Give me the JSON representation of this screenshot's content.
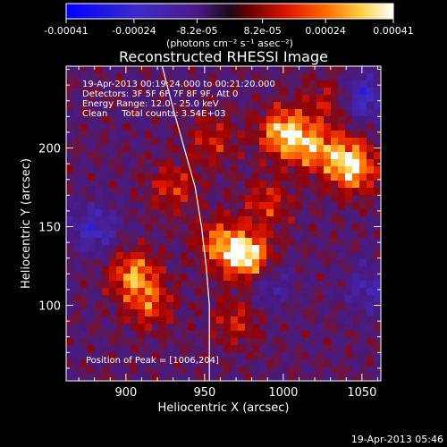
{
  "colorbar": {
    "tick_labels": [
      "-0.00041",
      "-0.00024",
      "-8.2e-05",
      "8.2e-05",
      "0.00024",
      "0.00041"
    ],
    "tick_values": [
      -0.00041,
      -0.00024,
      -8.2e-05,
      8.2e-05,
      0.00024,
      0.00041
    ],
    "units": "(photons cm⁻² s⁻¹ asec⁻²)",
    "range": [
      -0.00041,
      0.00041
    ]
  },
  "chart_data": {
    "type": "heatmap",
    "title": "Reconstructed RHESSI Image",
    "xlabel": "Heliocentric X (arcsec)",
    "ylabel": "Heliocentric Y (arcsec)",
    "xlim": [
      862,
      1062
    ],
    "ylim": [
      52,
      252
    ],
    "xticks": [
      900,
      950,
      1000,
      1050
    ],
    "yticks": [
      100,
      150,
      200
    ],
    "annotations": [
      "19-Apr-2013 00:19:24.000 to 00:21:20.000",
      "Detectors: 3F 5F 6F 7F 8F 9F, Att 0",
      "Energy Range: 12.0 - 25.0 keV",
      "Clean     Total counts: 3.54E+03"
    ],
    "peak_label": "Position of Peak = [1006,204]",
    "peak": [
      1006,
      204
    ],
    "limb_curve": [
      [
        923,
        252
      ],
      [
        930,
        225
      ],
      [
        937,
        200
      ],
      [
        944,
        175
      ],
      [
        948,
        150
      ],
      [
        951,
        125
      ],
      [
        953,
        100
      ],
      [
        953,
        75
      ],
      [
        953,
        52
      ]
    ],
    "hot_spots": [
      {
        "x": 1000,
        "y": 210,
        "level": 0.85
      },
      {
        "x": 1018,
        "y": 200,
        "level": 0.6
      },
      {
        "x": 978,
        "y": 130,
        "level": 1.0
      },
      {
        "x": 960,
        "y": 140,
        "level": 0.6
      },
      {
        "x": 905,
        "y": 120,
        "level": 0.7
      },
      {
        "x": 915,
        "y": 100,
        "level": 0.5
      },
      {
        "x": 1045,
        "y": 185,
        "level": 0.6
      },
      {
        "x": 1040,
        "y": 195,
        "level": 0.5
      },
      {
        "x": 930,
        "y": 175,
        "level": 0.45
      },
      {
        "x": 990,
        "y": 165,
        "level": 0.45
      },
      {
        "x": 970,
        "y": 90,
        "level": 0.4
      },
      {
        "x": 1030,
        "y": 230,
        "level": 0.4
      },
      {
        "x": 955,
        "y": 205,
        "level": 0.4
      }
    ],
    "cold_spots": [
      {
        "x": 1050,
        "y": 232,
        "level": -0.6
      },
      {
        "x": 880,
        "y": 148,
        "level": -0.5
      },
      {
        "x": 990,
        "y": 115,
        "level": -0.4
      },
      {
        "x": 1055,
        "y": 110,
        "level": -0.4
      }
    ]
  },
  "footer": {
    "timestamp": "19-Apr-2013 05:46"
  }
}
